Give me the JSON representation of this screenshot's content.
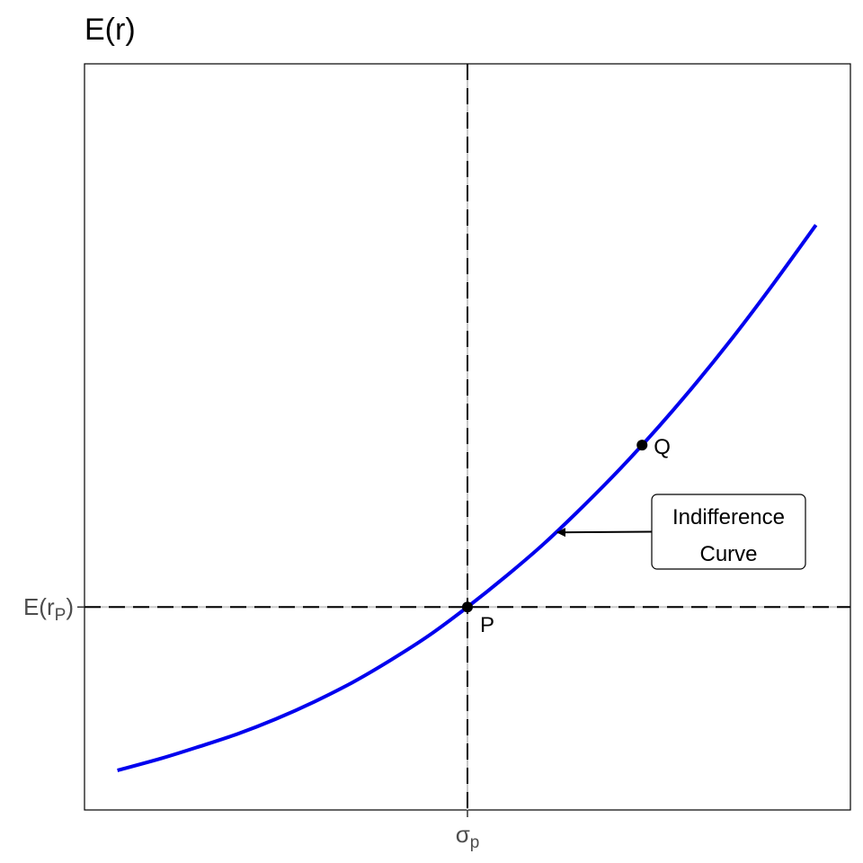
{
  "chart_data": {
    "type": "line",
    "title": "E(r)",
    "xlabel": "",
    "ylabel": "E(r)",
    "xlim": [
      0,
      1
    ],
    "ylim": [
      0,
      1
    ],
    "grid": false,
    "x_ticks": [
      {
        "value": 0.5,
        "base": "σ",
        "sub": "p"
      }
    ],
    "y_ticks": [
      {
        "value": 0.272,
        "base": "E(r",
        "sub": "P",
        "suffix": ")"
      }
    ],
    "reference_lines": [
      {
        "orientation": "vertical",
        "value": 0.5,
        "style": "dashed"
      },
      {
        "orientation": "horizontal",
        "value": 0.272,
        "style": "dashed"
      }
    ],
    "series": [
      {
        "color": "#0000ee",
        "x": [
          0.043,
          0.1,
          0.15,
          0.2,
          0.25,
          0.3,
          0.35,
          0.4,
          0.45,
          0.5,
          0.55,
          0.6,
          0.65,
          0.7,
          0.75,
          0.8,
          0.85,
          0.9,
          0.955
        ],
        "y": [
          0.053,
          0.069,
          0.085,
          0.102,
          0.122,
          0.145,
          0.171,
          0.201,
          0.234,
          0.272,
          0.313,
          0.357,
          0.406,
          0.458,
          0.514,
          0.574,
          0.638,
          0.706,
          0.784
        ]
      }
    ],
    "points": [
      {
        "label": "P",
        "x": 0.5,
        "y": 0.272
      },
      {
        "label": "Q",
        "x": 0.728,
        "y": 0.489
      }
    ],
    "annotation": {
      "lines": [
        "Indifference",
        "Curve"
      ],
      "arrow_target": {
        "x": 0.615,
        "y": 0.372
      }
    }
  }
}
